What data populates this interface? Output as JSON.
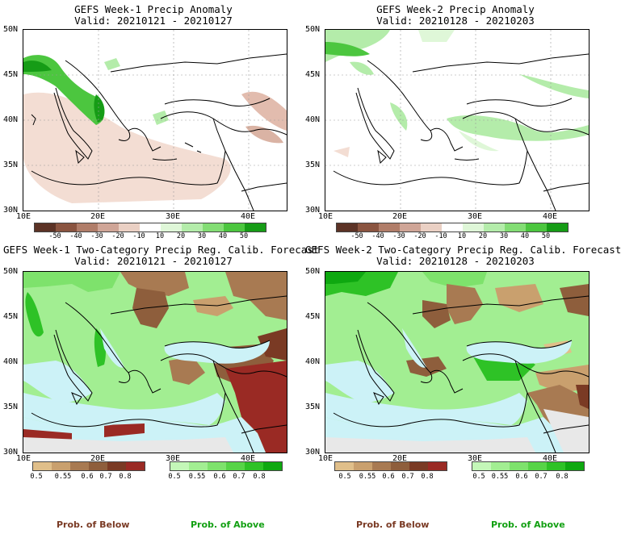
{
  "panels": {
    "p1": {
      "title": "GEFS Week-1 Precip Anomaly",
      "valid": "Valid: 20210121 - 20210127"
    },
    "p2": {
      "title": "GEFS Week-2 Precip Anomaly",
      "valid": "Valid: 20210128 - 20210203"
    },
    "p3": {
      "title": "GEFS Week-1 Two-Category Precip Reg. Calib. Forecast",
      "valid": "Valid: 20210121 - 20210127"
    },
    "p4": {
      "title": "GEFS Week-2 Two-Category Precip Reg. Calib. Forecast",
      "valid": "Valid: 20210128 - 20210203"
    }
  },
  "axes": {
    "lat_labels": [
      "50N",
      "45N",
      "40N",
      "35N",
      "30N"
    ],
    "lon_labels": [
      "10E",
      "20E",
      "30E",
      "40E"
    ]
  },
  "anomaly_colorbar": {
    "labels": [
      "-50",
      "-40",
      "-30",
      "-20",
      "-10",
      "10",
      "20",
      "30",
      "40",
      "50"
    ],
    "colors": [
      "#5c3326",
      "#8a5440",
      "#b07d69",
      "#cfa597",
      "#ead0c4",
      "#ffffff",
      "#dff7d8",
      "#b4ecaa",
      "#83dd74",
      "#4cc63f",
      "#169c16"
    ]
  },
  "prob_below_colorbar": {
    "labels": [
      "0.5",
      "0.55",
      "0.6",
      "0.7",
      "0.8"
    ],
    "colors": [
      "#e0bf8a",
      "#c9a06e",
      "#a87a52",
      "#8e5e3c",
      "#7a3a24",
      "#9a2a24"
    ]
  },
  "prob_above_colorbar": {
    "labels": [
      "0.5",
      "0.55",
      "0.6",
      "0.7",
      "0.8"
    ],
    "colors": [
      "#c4f7b8",
      "#a2ee92",
      "#7ee26c",
      "#57d447",
      "#2ec226",
      "#0ea810"
    ]
  },
  "footer": {
    "below_left": "Prob. of Below",
    "above_left": "Prob. of Above",
    "below_right": "Prob. of Below",
    "above_right": "Prob. of Above"
  },
  "colors": {
    "sea": "#ccf2f7",
    "below_brown": "#8e5e3c",
    "above_green": "#3cc43c",
    "footer_below": "#7a3a24",
    "footer_above": "#12a012"
  }
}
